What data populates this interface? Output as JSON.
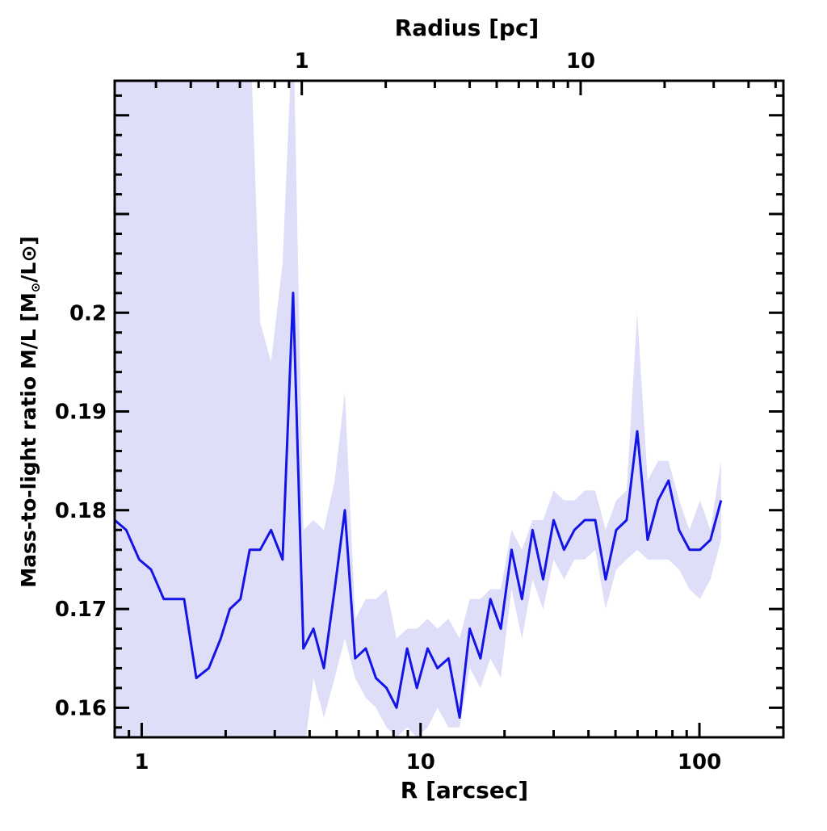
{
  "chart_data": {
    "type": "line",
    "title": "",
    "xlabel": "R [arcsec]",
    "ylabel_main": "Mass-to-light ratio M/L [M",
    "ylabel_tail": "/L⊙]",
    "top_axis_label": "Radius [pc]",
    "x_scale": "log",
    "xlim": [
      0.8,
      200
    ],
    "ylim": [
      0.157,
      0.2235
    ],
    "x_ticks": [
      1,
      10,
      100
    ],
    "x_tick_labels": [
      "1",
      "10",
      "100"
    ],
    "top_ticks_pc": [
      1,
      10
    ],
    "top_tick_labels": [
      "1",
      "10"
    ],
    "top_tick_positions_arcsec": [
      3.75,
      37.5
    ],
    "y_ticks": [
      0.16,
      0.17,
      0.18,
      0.19,
      0.2
    ],
    "y_tick_labels": [
      "0.16",
      "0.17",
      "0.18",
      "0.19",
      "0.2"
    ],
    "grid": false,
    "colors": {
      "line": "#1414e6",
      "band": "#dedef8"
    },
    "series": [
      {
        "x": [
          0.8,
          0.88,
          0.98,
          1.08,
          1.2,
          1.42,
          1.57,
          1.74,
          1.92,
          2.07,
          2.26,
          2.44,
          2.66,
          2.91,
          3.2,
          3.49,
          3.8,
          4.13,
          4.5,
          4.92,
          5.35,
          5.83,
          6.36,
          6.92,
          7.55,
          8.2,
          8.95,
          9.7,
          10.6,
          11.5,
          12.6,
          13.8,
          15.0,
          16.4,
          17.8,
          19.4,
          21.2,
          23.1,
          25.2,
          27.5,
          30.0,
          32.7,
          35.6,
          38.8,
          42.3,
          46.1,
          50.3,
          54.8,
          59.8,
          65.2,
          71.1,
          77.5,
          84.5,
          92.1,
          100.5,
          109.5,
          119.5
        ],
        "y": [
          0.179,
          0.178,
          0.175,
          0.174,
          0.171,
          0.171,
          0.163,
          0.164,
          0.167,
          0.17,
          0.171,
          0.176,
          0.176,
          0.178,
          0.175,
          0.202,
          0.166,
          0.168,
          0.164,
          0.172,
          0.18,
          0.165,
          0.166,
          0.163,
          0.162,
          0.16,
          0.166,
          0.162,
          0.166,
          0.164,
          0.165,
          0.159,
          0.168,
          0.165,
          0.171,
          0.168,
          0.176,
          0.171,
          0.178,
          0.173,
          0.179,
          0.176,
          0.178,
          0.179,
          0.179,
          0.173,
          0.178,
          0.179,
          0.188,
          0.177,
          0.181,
          0.183,
          0.178,
          0.176,
          0.176,
          0.177,
          0.181
        ],
        "y_low": [
          0.15,
          0.15,
          0.15,
          0.15,
          0.15,
          0.15,
          0.15,
          0.15,
          0.15,
          0.15,
          0.15,
          0.15,
          0.15,
          0.15,
          0.15,
          0.15,
          0.155,
          0.163,
          0.159,
          0.163,
          0.167,
          0.163,
          0.161,
          0.16,
          0.158,
          0.157,
          0.158,
          0.157,
          0.158,
          0.16,
          0.158,
          0.158,
          0.164,
          0.162,
          0.165,
          0.163,
          0.172,
          0.167,
          0.173,
          0.17,
          0.175,
          0.173,
          0.175,
          0.175,
          0.176,
          0.17,
          0.174,
          0.175,
          0.176,
          0.175,
          0.175,
          0.175,
          0.174,
          0.172,
          0.171,
          0.173,
          0.177
        ],
        "y_high": [
          0.23,
          0.23,
          0.23,
          0.23,
          0.23,
          0.23,
          0.23,
          0.23,
          0.23,
          0.23,
          0.23,
          0.23,
          0.199,
          0.195,
          0.205,
          0.23,
          0.178,
          0.179,
          0.178,
          0.183,
          0.192,
          0.169,
          0.171,
          0.171,
          0.172,
          0.167,
          0.168,
          0.168,
          0.169,
          0.168,
          0.169,
          0.167,
          0.171,
          0.171,
          0.172,
          0.172,
          0.178,
          0.176,
          0.179,
          0.179,
          0.182,
          0.181,
          0.181,
          0.182,
          0.182,
          0.178,
          0.181,
          0.182,
          0.2,
          0.183,
          0.185,
          0.185,
          0.181,
          0.178,
          0.181,
          0.178,
          0.185
        ]
      }
    ]
  }
}
